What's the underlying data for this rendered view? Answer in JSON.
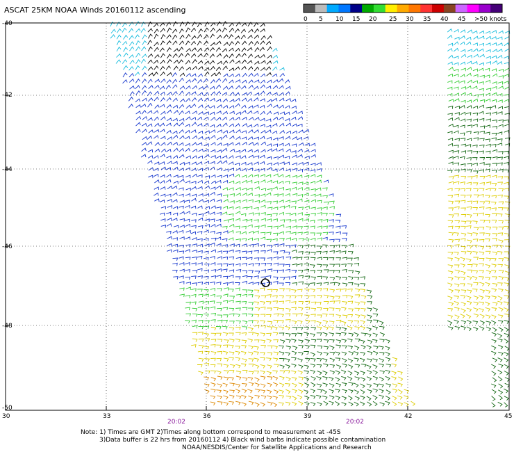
{
  "title": "ASCAT 25KM NOAA Winds 20160112 ascending",
  "legend": {
    "labels": [
      "0",
      "5",
      "10",
      "15",
      "20",
      "25",
      "30",
      "35",
      "40",
      "45",
      ">50 knots"
    ],
    "colors": [
      "#555555",
      "#bbbbbb",
      "#00aaff",
      "#0077ff",
      "#000088",
      "#00aa00",
      "#33dd33",
      "#ffee00",
      "#ffaa00",
      "#ff7700",
      "#ff3333",
      "#cc0000",
      "#884422",
      "#cc66ff",
      "#ff00ff",
      "#9900cc",
      "#440077"
    ]
  },
  "axes": {
    "lon_labels": [
      "30",
      "33",
      "36",
      "39",
      "42",
      "45"
    ],
    "lat_labels": [
      "-40",
      "-42",
      "-44",
      "-46",
      "-48",
      "-50"
    ],
    "pass_times": [
      "20:02",
      "20:02"
    ]
  },
  "island_marker": "O",
  "notes": {
    "line1": "Note: 1) Times are GMT 2)Times along bottom correspond to measurement at -45S",
    "line2": "3)Data buffer is 22 hrs from 20160112 4) Black wind barbs indicate possible contamination",
    "line3": "NOAA/NESDIS/Center for Satellite Applications and Research"
  },
  "colors": {
    "speed_black": "#000000",
    "speed_cyan": "#11bbdd",
    "speed_blue": "#1133cc",
    "speed_green_light": "#33cc33",
    "speed_green_dark": "#116611",
    "speed_yellow": "#ddcc00",
    "speed_orange": "#dd8800",
    "speed_brown": "#aa4411",
    "time_label": "#8a1a9c"
  }
}
